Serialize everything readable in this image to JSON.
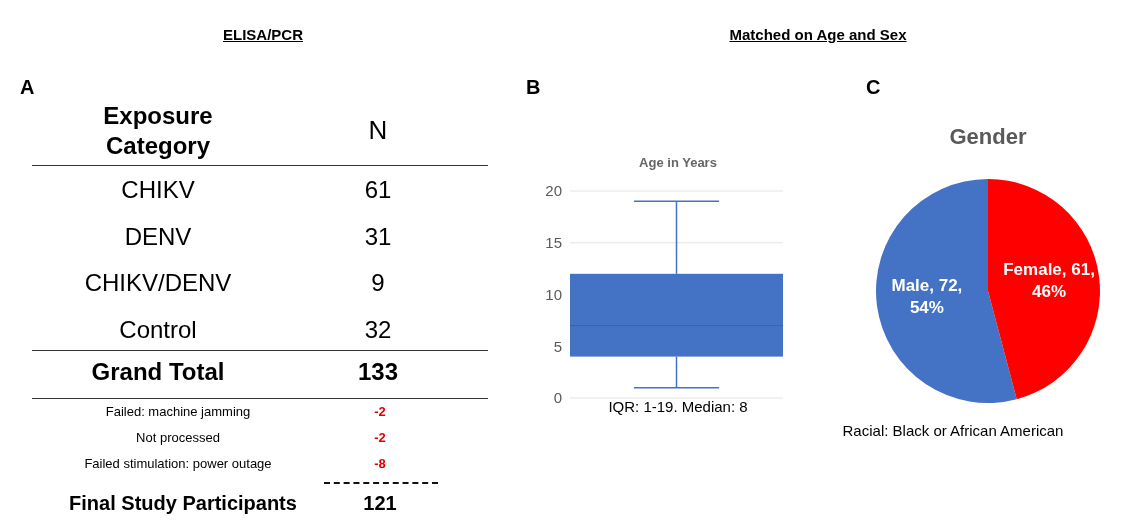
{
  "chart_data": [
    {
      "type": "other",
      "title": "ELISA/PCR",
      "xlabel": "Exposure Category",
      "ylabel": "N",
      "categories": [
        "CHIKV",
        "DENV",
        "CHIKV/DENV",
        "Control"
      ],
      "values": [
        61,
        31,
        9,
        32
      ],
      "data_labels": true,
      "annotations": [
        "A",
        "Grand Total",
        "133",
        "Failed: machine jamming",
        "-2",
        "Not processed",
        "-2",
        "Failed stimulation: power outage",
        "-8",
        "Final Study Participants",
        "121"
      ]
    },
    {
      "type": "box",
      "subtitle": "Matched on Age and Sex",
      "title": "Age in Years",
      "categories": [
        null
      ],
      "color": "#4472c4",
      "boxes": [
        {
          "low": 1,
          "q1": 4,
          "median": 7,
          "q3": 12,
          "high": 19
        }
      ],
      "ylim": [
        0,
        20
      ],
      "yticks": [
        0,
        5,
        10,
        15,
        20
      ],
      "grid": "y",
      "annotations": [
        "B",
        "IQR: 1-19. Median: 8"
      ]
    },
    {
      "type": "pie",
      "title": "Gender",
      "categories": [
        "Male",
        "Female"
      ],
      "values": [
        72,
        61
      ],
      "colors": [
        "#4472c4",
        "#ff0000"
      ],
      "value_labels": [
        "72, 54%",
        "61, 46%"
      ],
      "annotations": [
        "C",
        "Racial: Black or African American"
      ]
    }
  ]
}
